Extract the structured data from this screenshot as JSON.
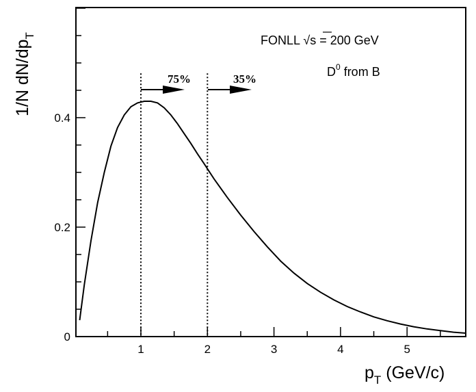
{
  "chart_data": {
    "type": "line",
    "title": "",
    "xlabel": {
      "main": "p",
      "sub": "T",
      "unit": " (GeV/c)"
    },
    "ylabel": {
      "main": "1/N dN/dp",
      "sub": "T"
    },
    "xlim": [
      0.05,
      5.9
    ],
    "ylim": [
      0,
      0.6
    ],
    "x_ticks": [
      1,
      2,
      3,
      4,
      5
    ],
    "x_tick_labels": [
      "1",
      "2",
      "3",
      "4",
      "5"
    ],
    "y_ticks": [
      0,
      0.2,
      0.4
    ],
    "y_tick_labels": [
      "0",
      "0.2",
      "0.4"
    ],
    "grid": false,
    "series": [
      {
        "x": [
          0.08,
          0.15,
          0.25,
          0.35,
          0.45,
          0.55,
          0.65,
          0.75,
          0.85,
          0.95,
          1.05,
          1.15,
          1.25,
          1.35,
          1.45,
          1.55,
          1.65,
          1.75,
          1.85,
          1.95,
          2.1,
          2.3,
          2.5,
          2.7,
          2.9,
          3.1,
          3.3,
          3.5,
          3.7,
          3.9,
          4.1,
          4.3,
          4.5,
          4.7,
          4.9,
          5.1,
          5.3,
          5.5,
          5.7,
          5.9
        ],
        "y": [
          0.03,
          0.095,
          0.175,
          0.245,
          0.3,
          0.348,
          0.382,
          0.405,
          0.42,
          0.427,
          0.43,
          0.43,
          0.427,
          0.418,
          0.405,
          0.389,
          0.371,
          0.353,
          0.334,
          0.316,
          0.288,
          0.254,
          0.222,
          0.192,
          0.164,
          0.138,
          0.116,
          0.097,
          0.081,
          0.067,
          0.055,
          0.045,
          0.036,
          0.029,
          0.023,
          0.018,
          0.014,
          0.011,
          0.008,
          0.006
        ]
      }
    ],
    "cut_lines": [
      1,
      2
    ],
    "annotations": {
      "fonll_prefix": "FONLL ",
      "sqrt_symbol": "√",
      "fonll_suffix": "s = 200 GeV",
      "d0_label": "D",
      "d0_super": "0",
      "d0_suffix": " from B",
      "pct_1": "75%",
      "pct_2": "35%"
    }
  }
}
